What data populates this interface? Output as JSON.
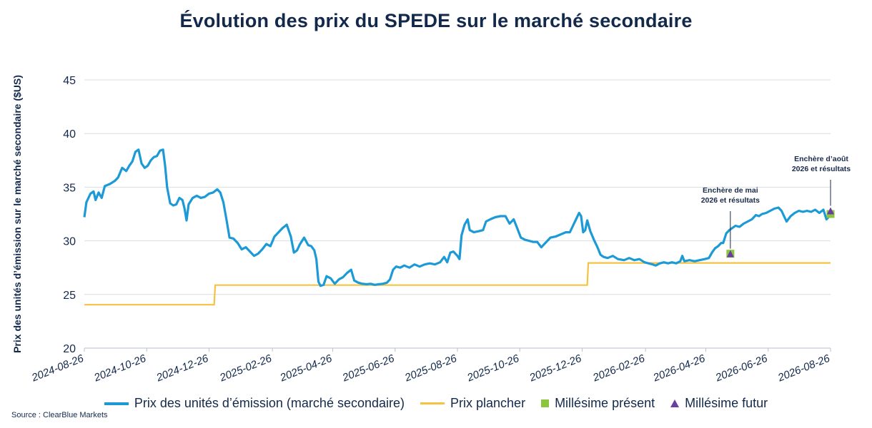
{
  "chart_data": {
    "type": "line",
    "title": "Évolution des prix du SPEDE sur le marché secondaire",
    "ylabel": "Prix des unités d’émission sur le marché secondaire ($US)",
    "xlabel": "",
    "ylim": [
      20,
      45
    ],
    "yticks": [
      20,
      25,
      30,
      35,
      40,
      45
    ],
    "xticks": [
      "2024-08-26",
      "2024-10-26",
      "2024-12-26",
      "2025-02-26",
      "2025-04-26",
      "2025-06-26",
      "2025-08-26",
      "2025-10-26",
      "2025-12-26",
      "2026-02-26",
      "2026-04-26",
      "2026-06-26",
      "2026-08-26"
    ],
    "grid": "horizontal",
    "legend_position": "bottom",
    "series": [
      {
        "name": "Prix des unités d’émission (marché secondaire)",
        "color": "#1b9ad6",
        "points": [
          [
            "2024-08-26",
            32.2
          ],
          [
            "2024-08-28",
            33.6
          ],
          [
            "2024-09-01",
            34.4
          ],
          [
            "2024-09-04",
            34.6
          ],
          [
            "2024-09-06",
            33.8
          ],
          [
            "2024-09-09",
            34.5
          ],
          [
            "2024-09-12",
            34.0
          ],
          [
            "2024-09-15",
            35.1
          ],
          [
            "2024-09-20",
            35.3
          ],
          [
            "2024-09-25",
            35.6
          ],
          [
            "2024-09-28",
            35.9
          ],
          [
            "2024-10-02",
            36.8
          ],
          [
            "2024-10-06",
            36.5
          ],
          [
            "2024-10-09",
            37.0
          ],
          [
            "2024-10-12",
            37.4
          ],
          [
            "2024-10-15",
            38.3
          ],
          [
            "2024-10-18",
            38.5
          ],
          [
            "2024-10-21",
            37.2
          ],
          [
            "2024-10-24",
            36.8
          ],
          [
            "2024-10-27",
            37.0
          ],
          [
            "2024-10-30",
            37.5
          ],
          [
            "2024-11-02",
            37.8
          ],
          [
            "2024-11-05",
            37.9
          ],
          [
            "2024-11-08",
            38.4
          ],
          [
            "2024-11-11",
            38.5
          ],
          [
            "2024-11-13",
            37.0
          ],
          [
            "2024-11-15",
            35.0
          ],
          [
            "2024-11-18",
            33.5
          ],
          [
            "2024-11-21",
            33.3
          ],
          [
            "2024-11-24",
            33.4
          ],
          [
            "2024-11-27",
            34.0
          ],
          [
            "2024-11-30",
            33.8
          ],
          [
            "2024-12-02",
            33.0
          ],
          [
            "2024-12-04",
            31.9
          ],
          [
            "2024-12-06",
            33.4
          ],
          [
            "2024-12-10",
            34.0
          ],
          [
            "2024-12-14",
            34.2
          ],
          [
            "2024-12-18",
            34.0
          ],
          [
            "2024-12-22",
            34.1
          ],
          [
            "2024-12-26",
            34.4
          ],
          [
            "2024-12-30",
            34.5
          ],
          [
            "2025-01-03",
            34.8
          ],
          [
            "2025-01-06",
            34.5
          ],
          [
            "2025-01-09",
            33.6
          ],
          [
            "2025-01-12",
            32.0
          ],
          [
            "2025-01-15",
            30.3
          ],
          [
            "2025-01-19",
            30.2
          ],
          [
            "2025-01-23",
            29.8
          ],
          [
            "2025-01-27",
            29.2
          ],
          [
            "2025-01-31",
            29.4
          ],
          [
            "2025-02-04",
            29.0
          ],
          [
            "2025-02-08",
            28.6
          ],
          [
            "2025-02-12",
            28.8
          ],
          [
            "2025-02-16",
            29.2
          ],
          [
            "2025-02-20",
            29.7
          ],
          [
            "2025-02-24",
            29.5
          ],
          [
            "2025-02-28",
            30.4
          ],
          [
            "2025-03-04",
            30.8
          ],
          [
            "2025-03-08",
            31.2
          ],
          [
            "2025-03-12",
            31.5
          ],
          [
            "2025-03-16",
            30.4
          ],
          [
            "2025-03-19",
            28.9
          ],
          [
            "2025-03-22",
            29.1
          ],
          [
            "2025-03-25",
            29.7
          ],
          [
            "2025-03-29",
            30.3
          ],
          [
            "2025-04-02",
            29.6
          ],
          [
            "2025-04-05",
            29.5
          ],
          [
            "2025-04-08",
            29.1
          ],
          [
            "2025-04-10",
            28.3
          ],
          [
            "2025-04-12",
            26.2
          ],
          [
            "2025-04-14",
            25.8
          ],
          [
            "2025-04-17",
            25.9
          ],
          [
            "2025-04-20",
            26.7
          ],
          [
            "2025-04-24",
            26.5
          ],
          [
            "2025-04-28",
            26.0
          ],
          [
            "2025-05-02",
            26.4
          ],
          [
            "2025-05-06",
            26.6
          ],
          [
            "2025-05-10",
            27.0
          ],
          [
            "2025-05-14",
            27.3
          ],
          [
            "2025-05-17",
            26.3
          ],
          [
            "2025-05-21",
            26.1
          ],
          [
            "2025-05-25",
            26.0
          ],
          [
            "2025-05-29",
            25.95
          ],
          [
            "2025-06-02",
            26.0
          ],
          [
            "2025-06-06",
            25.9
          ],
          [
            "2025-06-10",
            25.95
          ],
          [
            "2025-06-14",
            26.0
          ],
          [
            "2025-06-18",
            26.1
          ],
          [
            "2025-06-21",
            26.4
          ],
          [
            "2025-06-24",
            27.3
          ],
          [
            "2025-06-27",
            27.6
          ],
          [
            "2025-07-01",
            27.5
          ],
          [
            "2025-07-05",
            27.7
          ],
          [
            "2025-07-10",
            27.5
          ],
          [
            "2025-07-15",
            27.8
          ],
          [
            "2025-07-20",
            27.6
          ],
          [
            "2025-07-25",
            27.8
          ],
          [
            "2025-07-30",
            27.9
          ],
          [
            "2025-08-04",
            27.8
          ],
          [
            "2025-08-09",
            28.0
          ],
          [
            "2025-08-13",
            28.5
          ],
          [
            "2025-08-16",
            28.0
          ],
          [
            "2025-08-19",
            28.9
          ],
          [
            "2025-08-22",
            29.0
          ],
          [
            "2025-08-26",
            28.6
          ],
          [
            "2025-08-28",
            28.3
          ],
          [
            "2025-08-30",
            30.5
          ],
          [
            "2025-09-02",
            31.5
          ],
          [
            "2025-09-05",
            32.0
          ],
          [
            "2025-09-07",
            31.0
          ],
          [
            "2025-09-11",
            30.8
          ],
          [
            "2025-09-16",
            30.9
          ],
          [
            "2025-09-20",
            31.0
          ],
          [
            "2025-09-23",
            31.8
          ],
          [
            "2025-09-27",
            32.0
          ],
          [
            "2025-10-02",
            32.2
          ],
          [
            "2025-10-07",
            32.3
          ],
          [
            "2025-10-12",
            32.3
          ],
          [
            "2025-10-16",
            31.6
          ],
          [
            "2025-10-20",
            32.0
          ],
          [
            "2025-10-23",
            31.3
          ],
          [
            "2025-10-27",
            30.3
          ],
          [
            "2025-10-31",
            30.1
          ],
          [
            "2025-11-04",
            30.0
          ],
          [
            "2025-11-08",
            29.9
          ],
          [
            "2025-11-12",
            29.9
          ],
          [
            "2025-11-16",
            29.4
          ],
          [
            "2025-11-20",
            29.8
          ],
          [
            "2025-11-25",
            30.3
          ],
          [
            "2025-11-30",
            30.4
          ],
          [
            "2025-12-05",
            30.6
          ],
          [
            "2025-12-10",
            30.8
          ],
          [
            "2025-12-14",
            30.8
          ],
          [
            "2025-12-17",
            31.4
          ],
          [
            "2025-12-20",
            32.0
          ],
          [
            "2025-12-23",
            32.6
          ],
          [
            "2025-12-25",
            32.3
          ],
          [
            "2025-12-27",
            30.8
          ],
          [
            "2025-12-29",
            31.0
          ],
          [
            "2025-12-31",
            31.9
          ],
          [
            "2026-01-03",
            30.9
          ],
          [
            "2026-01-07",
            30.0
          ],
          [
            "2026-01-10",
            29.4
          ],
          [
            "2026-01-13",
            28.7
          ],
          [
            "2026-01-16",
            28.5
          ],
          [
            "2026-01-20",
            28.4
          ],
          [
            "2026-01-25",
            28.6
          ],
          [
            "2026-01-30",
            28.3
          ],
          [
            "2026-02-05",
            28.2
          ],
          [
            "2026-02-10",
            28.4
          ],
          [
            "2026-02-15",
            28.2
          ],
          [
            "2026-02-20",
            28.3
          ],
          [
            "2026-02-25",
            28.0
          ],
          [
            "2026-03-01",
            27.9
          ],
          [
            "2026-03-05",
            27.8
          ],
          [
            "2026-03-08",
            27.7
          ],
          [
            "2026-03-12",
            27.9
          ],
          [
            "2026-03-16",
            28.0
          ],
          [
            "2026-03-20",
            27.9
          ],
          [
            "2026-03-24",
            28.0
          ],
          [
            "2026-03-28",
            27.9
          ],
          [
            "2026-04-01",
            28.1
          ],
          [
            "2026-04-03",
            28.6
          ],
          [
            "2026-04-05",
            28.1
          ],
          [
            "2026-04-10",
            28.2
          ],
          [
            "2026-04-15",
            28.1
          ],
          [
            "2026-04-20",
            28.2
          ],
          [
            "2026-04-25",
            28.3
          ],
          [
            "2026-04-29",
            28.4
          ],
          [
            "2026-05-02",
            28.9
          ],
          [
            "2026-05-05",
            29.3
          ],
          [
            "2026-05-08",
            29.5
          ],
          [
            "2026-05-11",
            29.8
          ],
          [
            "2026-05-13",
            29.8
          ],
          [
            "2026-05-16",
            30.7
          ],
          [
            "2026-05-19",
            31.0
          ],
          [
            "2026-05-22",
            31.2
          ],
          [
            "2026-05-25",
            31.4
          ],
          [
            "2026-05-29",
            31.3
          ],
          [
            "2026-06-02",
            31.6
          ],
          [
            "2026-06-06",
            31.8
          ],
          [
            "2026-06-10",
            32.0
          ],
          [
            "2026-06-14",
            32.4
          ],
          [
            "2026-06-17",
            32.3
          ],
          [
            "2026-06-20",
            32.5
          ],
          [
            "2026-06-24",
            32.6
          ],
          [
            "2026-06-28",
            32.8
          ],
          [
            "2026-07-02",
            33.0
          ],
          [
            "2026-07-06",
            33.1
          ],
          [
            "2026-07-09",
            32.8
          ],
          [
            "2026-07-12",
            32.2
          ],
          [
            "2026-07-14",
            31.8
          ],
          [
            "2026-07-18",
            32.3
          ],
          [
            "2026-07-22",
            32.6
          ],
          [
            "2026-07-26",
            32.8
          ],
          [
            "2026-07-30",
            32.7
          ],
          [
            "2026-08-03",
            32.8
          ],
          [
            "2026-08-07",
            32.7
          ],
          [
            "2026-08-11",
            32.9
          ],
          [
            "2026-08-15",
            32.6
          ],
          [
            "2026-08-19",
            32.9
          ],
          [
            "2026-08-22",
            32.0
          ],
          [
            "2026-08-26",
            32.4
          ]
        ]
      },
      {
        "name": "Prix plancher",
        "color": "#f5c242",
        "step": true,
        "points": [
          [
            "2024-08-26",
            24.04
          ],
          [
            "2024-12-31",
            24.04
          ],
          [
            "2025-01-01",
            25.87
          ],
          [
            "2025-12-31",
            25.87
          ],
          [
            "2026-01-01",
            27.94
          ],
          [
            "2026-08-26",
            27.94
          ]
        ]
      },
      {
        "name": "Millésime présent",
        "color": "#8cc63f",
        "marker": "square",
        "points": [
          [
            "2026-05-20",
            28.8
          ],
          [
            "2026-08-26",
            32.5
          ]
        ]
      },
      {
        "name": "Millésime futur",
        "color": "#6a3ea1",
        "marker": "triangle",
        "points": [
          [
            "2026-05-20",
            28.8
          ],
          [
            "2026-08-26",
            32.8
          ]
        ]
      }
    ],
    "annotations": [
      {
        "x": "2026-05-20",
        "lines": [
          "Enchère de mai",
          "2026 et résultats"
        ]
      },
      {
        "x": "2026-08-26",
        "lines": [
          "Enchère d’août",
          "2026 et résultats"
        ]
      }
    ]
  },
  "source": "Source : ClearBlue Markets"
}
